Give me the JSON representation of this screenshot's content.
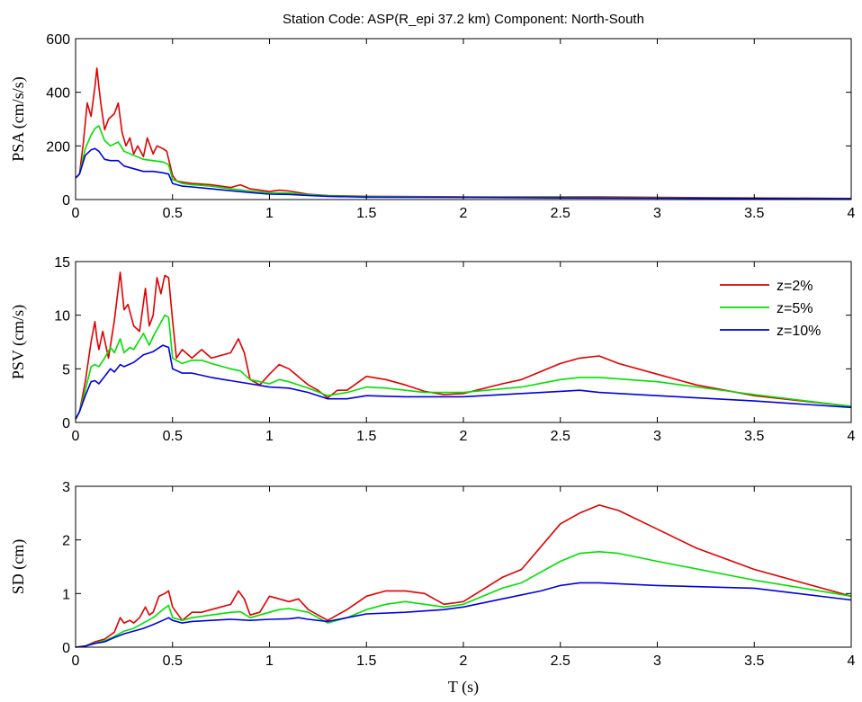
{
  "title": "Station Code: ASP(R_epi 37.2 km) Component: North-South",
  "xlabel": "T (s)",
  "legend": {
    "placement": "top-right of middle panel",
    "entries": [
      "z=2%",
      "z=5%",
      "z=10%"
    ]
  },
  "colors": {
    "z=2%": "#e00000",
    "z=5%": "#00e000",
    "z=10%": "#0000e0"
  },
  "chart_data": [
    {
      "type": "line",
      "ylabel": "PSA (cm/s/s)",
      "xlim": [
        0,
        4
      ],
      "ylim": [
        0,
        600
      ],
      "xticks": [
        0,
        0.5,
        1,
        1.5,
        2,
        2.5,
        3,
        3.5,
        4
      ],
      "xtick_labels": [
        "0",
        "0.5",
        "1",
        "1.5",
        "2",
        "2.5",
        "3",
        "3.5",
        "4"
      ],
      "yticks": [
        0,
        200,
        400,
        600
      ],
      "ytick_labels": [
        "0",
        "200",
        "400",
        "600"
      ],
      "grid": false,
      "series": [
        {
          "name": "z=2%",
          "color": "#e00000",
          "x": [
            0,
            0.02,
            0.04,
            0.06,
            0.08,
            0.1,
            0.11,
            0.12,
            0.13,
            0.15,
            0.17,
            0.2,
            0.22,
            0.24,
            0.26,
            0.28,
            0.3,
            0.32,
            0.35,
            0.37,
            0.4,
            0.42,
            0.45,
            0.47,
            0.5,
            0.52,
            0.55,
            0.6,
            0.7,
            0.8,
            0.85,
            0.9,
            1.0,
            1.05,
            1.1,
            1.2,
            1.3,
            1.5,
            2.0,
            2.5,
            2.7,
            3.0,
            3.5,
            4.0
          ],
          "y": [
            80,
            95,
            210,
            360,
            310,
            420,
            490,
            420,
            360,
            260,
            300,
            320,
            360,
            250,
            200,
            230,
            170,
            200,
            160,
            230,
            170,
            200,
            190,
            180,
            90,
            70,
            65,
            60,
            55,
            45,
            55,
            40,
            30,
            35,
            32,
            20,
            15,
            12,
            10,
            10,
            10,
            8,
            6,
            4
          ]
        },
        {
          "name": "z=5%",
          "color": "#00e000",
          "x": [
            0,
            0.02,
            0.05,
            0.08,
            0.1,
            0.12,
            0.15,
            0.18,
            0.22,
            0.25,
            0.3,
            0.35,
            0.4,
            0.45,
            0.48,
            0.5,
            0.55,
            0.6,
            0.7,
            0.8,
            0.9,
            1.0,
            1.1,
            1.2,
            1.3,
            1.5,
            2.0,
            2.5,
            3.0,
            3.5,
            4.0
          ],
          "y": [
            80,
            95,
            190,
            240,
            265,
            275,
            220,
            200,
            215,
            180,
            165,
            150,
            145,
            140,
            130,
            75,
            60,
            55,
            50,
            40,
            32,
            25,
            24,
            18,
            14,
            11,
            9,
            8,
            6,
            5,
            3
          ]
        },
        {
          "name": "z=10%",
          "color": "#0000e0",
          "x": [
            0,
            0.02,
            0.05,
            0.08,
            0.1,
            0.12,
            0.15,
            0.18,
            0.22,
            0.25,
            0.3,
            0.35,
            0.4,
            0.45,
            0.48,
            0.5,
            0.55,
            0.6,
            0.7,
            0.8,
            0.9,
            1.0,
            1.1,
            1.2,
            1.3,
            1.5,
            2.0,
            2.5,
            3.0,
            3.5,
            4.0
          ],
          "y": [
            80,
            95,
            165,
            185,
            190,
            180,
            150,
            145,
            145,
            125,
            115,
            105,
            105,
            100,
            95,
            60,
            50,
            47,
            40,
            33,
            26,
            20,
            19,
            15,
            12,
            9,
            8,
            6,
            5,
            4,
            3
          ]
        }
      ]
    },
    {
      "type": "line",
      "ylabel": "PSV (cm/s)",
      "xlim": [
        0,
        4
      ],
      "ylim": [
        0,
        15
      ],
      "xticks": [
        0,
        0.5,
        1,
        1.5,
        2,
        2.5,
        3,
        3.5,
        4
      ],
      "xtick_labels": [
        "0",
        "0.5",
        "1",
        "1.5",
        "2",
        "2.5",
        "3",
        "3.5",
        "4"
      ],
      "yticks": [
        0,
        5,
        10,
        15
      ],
      "ytick_labels": [
        "0",
        "5",
        "10",
        "15"
      ],
      "grid": false,
      "series": [
        {
          "name": "z=2%",
          "color": "#e00000",
          "x": [
            0,
            0.02,
            0.05,
            0.08,
            0.1,
            0.11,
            0.12,
            0.14,
            0.17,
            0.2,
            0.23,
            0.25,
            0.27,
            0.3,
            0.33,
            0.36,
            0.38,
            0.4,
            0.42,
            0.44,
            0.46,
            0.48,
            0.5,
            0.52,
            0.55,
            0.6,
            0.65,
            0.7,
            0.8,
            0.84,
            0.87,
            0.9,
            0.95,
            1.0,
            1.05,
            1.1,
            1.2,
            1.25,
            1.3,
            1.35,
            1.4,
            1.5,
            1.6,
            1.7,
            1.8,
            1.9,
            2.0,
            2.2,
            2.3,
            2.5,
            2.6,
            2.7,
            2.8,
            3.0,
            3.2,
            3.5,
            4.0
          ],
          "y": [
            0.3,
            1,
            3.8,
            7.5,
            9.4,
            7.8,
            6.8,
            8.5,
            6.0,
            9.5,
            14.0,
            10.5,
            11.0,
            9.0,
            8.5,
            12.5,
            9.0,
            10.0,
            13.5,
            12.0,
            13.7,
            13.5,
            9.5,
            6.0,
            6.8,
            6.0,
            6.8,
            6.0,
            6.5,
            7.8,
            6.5,
            4.0,
            3.5,
            4.5,
            5.4,
            5.0,
            3.5,
            3.0,
            2.3,
            3.0,
            3.0,
            4.3,
            4.0,
            3.5,
            2.9,
            2.6,
            2.7,
            3.6,
            4.0,
            5.5,
            6.0,
            6.2,
            5.5,
            4.5,
            3.5,
            2.5,
            1.5
          ]
        },
        {
          "name": "z=5%",
          "color": "#00e000",
          "x": [
            0,
            0.02,
            0.05,
            0.08,
            0.1,
            0.12,
            0.15,
            0.18,
            0.2,
            0.23,
            0.25,
            0.28,
            0.3,
            0.35,
            0.38,
            0.4,
            0.43,
            0.46,
            0.48,
            0.5,
            0.55,
            0.6,
            0.65,
            0.7,
            0.8,
            0.85,
            0.9,
            0.95,
            1.0,
            1.05,
            1.1,
            1.2,
            1.3,
            1.4,
            1.5,
            1.6,
            1.8,
            2.0,
            2.3,
            2.5,
            2.6,
            2.7,
            3.0,
            3.5,
            4.0
          ],
          "y": [
            0.3,
            1,
            3.0,
            5.2,
            5.4,
            5.2,
            6.0,
            7.0,
            6.5,
            7.8,
            6.5,
            7.0,
            6.8,
            8.3,
            7.2,
            8.0,
            9.0,
            10.0,
            9.8,
            6.0,
            5.5,
            5.8,
            5.8,
            5.5,
            5.0,
            4.8,
            4.0,
            3.8,
            3.6,
            4.0,
            3.8,
            3.2,
            2.5,
            2.8,
            3.3,
            3.2,
            2.8,
            2.8,
            3.3,
            4.0,
            4.2,
            4.2,
            3.8,
            2.6,
            1.5
          ]
        },
        {
          "name": "z=10%",
          "color": "#0000e0",
          "x": [
            0,
            0.02,
            0.05,
            0.08,
            0.1,
            0.12,
            0.15,
            0.18,
            0.2,
            0.23,
            0.25,
            0.3,
            0.35,
            0.4,
            0.45,
            0.48,
            0.5,
            0.55,
            0.6,
            0.7,
            0.8,
            0.9,
            1.0,
            1.1,
            1.2,
            1.3,
            1.4,
            1.5,
            1.7,
            2.0,
            2.3,
            2.5,
            2.6,
            2.7,
            3.0,
            3.5,
            4.0
          ],
          "y": [
            0.3,
            1,
            2.5,
            3.8,
            3.9,
            3.6,
            4.3,
            5.0,
            4.7,
            5.4,
            5.2,
            5.6,
            6.3,
            6.6,
            7.2,
            7.0,
            5.0,
            4.6,
            4.6,
            4.2,
            3.9,
            3.6,
            3.3,
            3.2,
            2.8,
            2.2,
            2.2,
            2.5,
            2.4,
            2.4,
            2.7,
            2.9,
            3.0,
            2.8,
            2.5,
            2.0,
            1.4
          ]
        }
      ]
    },
    {
      "type": "line",
      "ylabel": "SD (cm)",
      "xlim": [
        0,
        4
      ],
      "ylim": [
        0,
        3
      ],
      "xticks": [
        0,
        0.5,
        1,
        1.5,
        2,
        2.5,
        3,
        3.5,
        4
      ],
      "xtick_labels": [
        "0",
        "0.5",
        "1",
        "1.5",
        "2",
        "2.5",
        "3",
        "3.5",
        "4"
      ],
      "yticks": [
        0,
        1,
        2,
        3
      ],
      "ytick_labels": [
        "0",
        "1",
        "2",
        "3"
      ],
      "grid": false,
      "series": [
        {
          "name": "z=2%",
          "color": "#e00000",
          "x": [
            0,
            0.05,
            0.1,
            0.15,
            0.2,
            0.23,
            0.25,
            0.28,
            0.3,
            0.33,
            0.36,
            0.38,
            0.4,
            0.43,
            0.46,
            0.48,
            0.5,
            0.55,
            0.6,
            0.65,
            0.7,
            0.75,
            0.8,
            0.84,
            0.87,
            0.9,
            0.95,
            1.0,
            1.05,
            1.1,
            1.15,
            1.2,
            1.25,
            1.3,
            1.35,
            1.4,
            1.5,
            1.6,
            1.7,
            1.8,
            1.9,
            2.0,
            2.2,
            2.3,
            2.5,
            2.6,
            2.7,
            2.8,
            3.0,
            3.2,
            3.5,
            4.0
          ],
          "y": [
            0,
            0.02,
            0.1,
            0.15,
            0.28,
            0.55,
            0.45,
            0.5,
            0.45,
            0.55,
            0.75,
            0.6,
            0.65,
            0.95,
            1.0,
            1.05,
            0.75,
            0.5,
            0.65,
            0.65,
            0.7,
            0.75,
            0.8,
            1.05,
            0.9,
            0.6,
            0.65,
            0.95,
            0.9,
            0.85,
            0.9,
            0.7,
            0.6,
            0.5,
            0.6,
            0.7,
            0.95,
            1.05,
            1.05,
            1.0,
            0.8,
            0.85,
            1.3,
            1.45,
            2.3,
            2.5,
            2.65,
            2.55,
            2.2,
            1.85,
            1.45,
            0.95
          ]
        },
        {
          "name": "z=5%",
          "color": "#00e000",
          "x": [
            0,
            0.05,
            0.1,
            0.15,
            0.2,
            0.25,
            0.3,
            0.35,
            0.4,
            0.45,
            0.48,
            0.5,
            0.55,
            0.6,
            0.7,
            0.8,
            0.85,
            0.9,
            1.0,
            1.05,
            1.1,
            1.2,
            1.3,
            1.4,
            1.5,
            1.6,
            1.7,
            1.8,
            1.9,
            2.0,
            2.2,
            2.3,
            2.5,
            2.6,
            2.7,
            2.8,
            3.0,
            3.5,
            4.0
          ],
          "y": [
            0,
            0.02,
            0.08,
            0.12,
            0.2,
            0.3,
            0.35,
            0.45,
            0.55,
            0.7,
            0.78,
            0.55,
            0.5,
            0.55,
            0.6,
            0.65,
            0.66,
            0.55,
            0.65,
            0.7,
            0.72,
            0.65,
            0.45,
            0.55,
            0.7,
            0.8,
            0.85,
            0.8,
            0.75,
            0.8,
            1.1,
            1.2,
            1.6,
            1.75,
            1.78,
            1.75,
            1.6,
            1.25,
            0.95
          ]
        },
        {
          "name": "z=10%",
          "color": "#0000e0",
          "x": [
            0,
            0.05,
            0.1,
            0.15,
            0.2,
            0.25,
            0.3,
            0.35,
            0.4,
            0.45,
            0.48,
            0.5,
            0.55,
            0.6,
            0.7,
            0.8,
            0.9,
            1.0,
            1.1,
            1.15,
            1.2,
            1.3,
            1.4,
            1.5,
            1.7,
            1.9,
            2.0,
            2.2,
            2.4,
            2.5,
            2.6,
            2.7,
            3.0,
            3.5,
            4.0
          ],
          "y": [
            0,
            0.02,
            0.07,
            0.1,
            0.18,
            0.25,
            0.3,
            0.35,
            0.42,
            0.5,
            0.55,
            0.5,
            0.45,
            0.48,
            0.5,
            0.52,
            0.5,
            0.52,
            0.53,
            0.55,
            0.52,
            0.48,
            0.55,
            0.62,
            0.65,
            0.7,
            0.75,
            0.9,
            1.05,
            1.15,
            1.2,
            1.2,
            1.15,
            1.1,
            0.88
          ]
        }
      ]
    }
  ]
}
